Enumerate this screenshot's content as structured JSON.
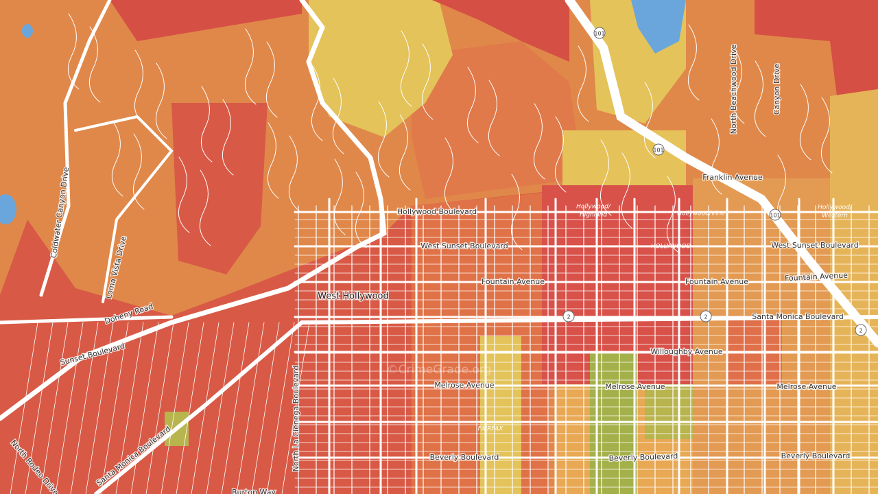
{
  "map": {
    "place_labels": [
      "West Hollywood"
    ],
    "street_labels": [
      "Hollywood Boulevard",
      "West Sunset Boulevard",
      "Fountain Avenue",
      "Fountain Avenue",
      "Fountain Avenue",
      "Franklin Avenue",
      "West Sunset Boulevard",
      "Santa Monica Boulevard",
      "Willoughby Avenue",
      "Melrose Avenue",
      "Melrose Avenue",
      "Melrose Avenue",
      "Beverly Boulevard",
      "Beverly Boulevard",
      "Beverly Boulevard",
      "Doheny Road",
      "Sunset Boulevard",
      "Santa Monica Boulevard",
      "North Rodeo Drive",
      "North La Cienega Boulevard",
      "Coldwater Canyon Drive",
      "Loma Vista Drive",
      "North Beachwood Drive",
      "Canyon Drive",
      "Burton Way"
    ],
    "neighborhood_labels": [
      [
        "Hollywood/",
        "Highland"
      ],
      [
        "Hollywood/Vine"
      ],
      [
        "HOLLYWOOD"
      ],
      [
        "Hollywood/",
        "Western"
      ],
      [
        "FAIRFAX"
      ]
    ],
    "highway_shields": [
      "101",
      "101",
      "101",
      "2",
      "2",
      "2"
    ],
    "watermark": "©CrimeGrade.org"
  }
}
